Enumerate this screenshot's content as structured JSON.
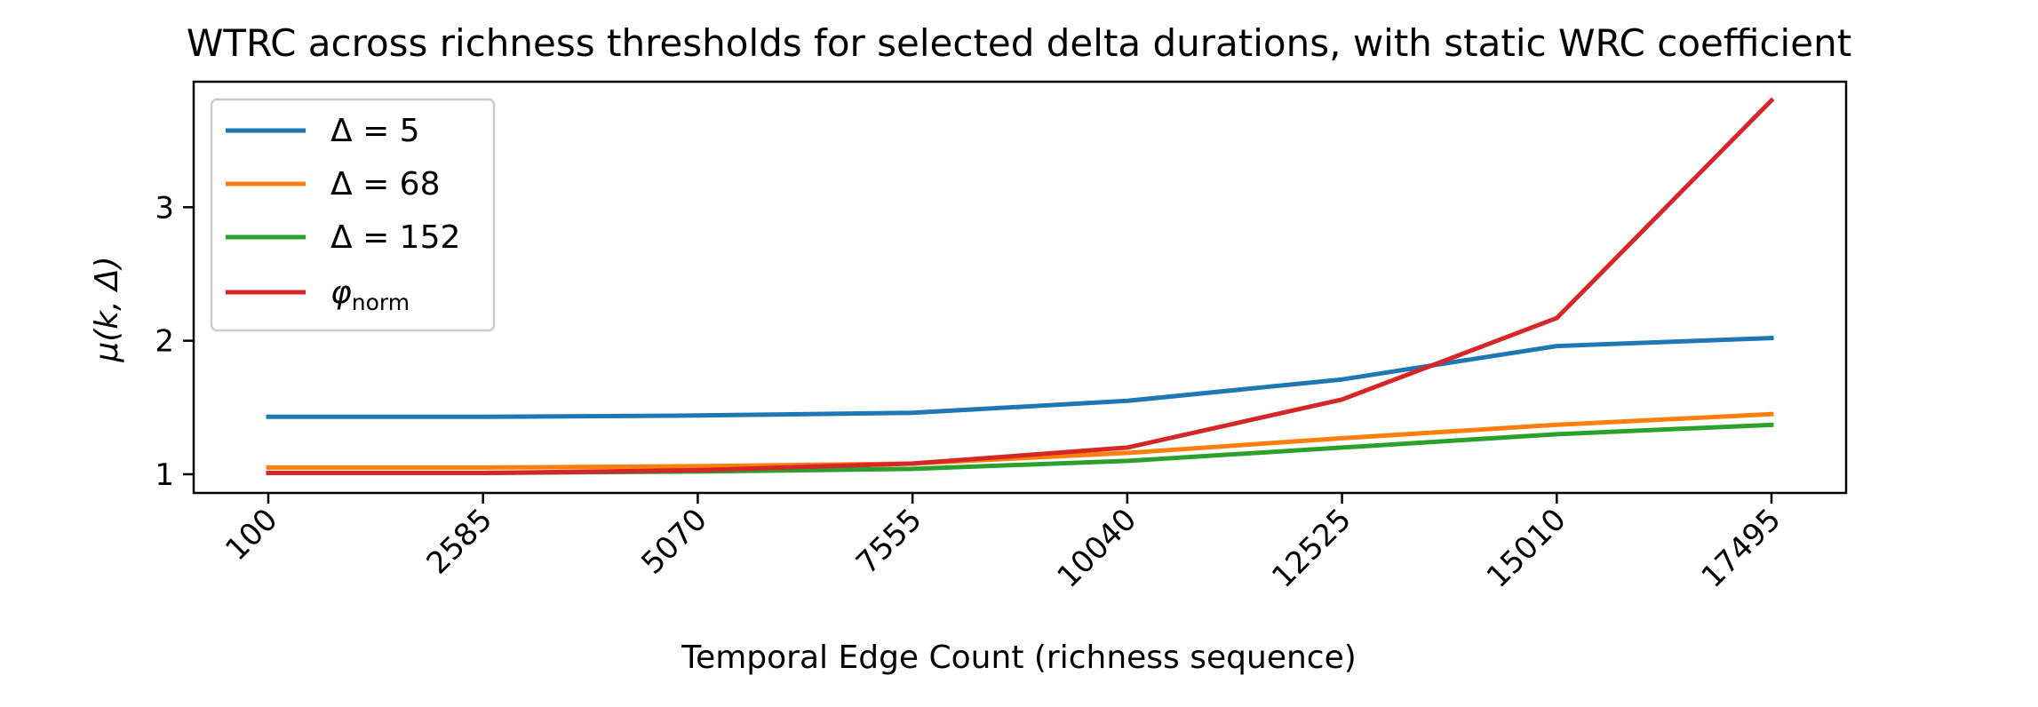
{
  "chart_data": {
    "type": "line",
    "title": "WTRC across richness thresholds for selected delta durations, with static WRC coefficient",
    "xlabel": "Temporal Edge Count (richness sequence)",
    "ylabel": "μ(k, Δ)",
    "categories": [
      "100",
      "2585",
      "5070",
      "7555",
      "10040",
      "12525",
      "15010",
      "17495"
    ],
    "ylim": [
      0.86,
      3.94
    ],
    "yticks": [
      1,
      2,
      3
    ],
    "grid": false,
    "legend_position": "top-left",
    "series": [
      {
        "name": "Δ = 5",
        "color": "#1f77b4",
        "values": [
          1.43,
          1.43,
          1.44,
          1.46,
          1.55,
          1.71,
          1.96,
          2.02
        ]
      },
      {
        "name": "Δ = 68",
        "color": "#ff7f0e",
        "values": [
          1.05,
          1.05,
          1.06,
          1.08,
          1.16,
          1.27,
          1.37,
          1.45
        ]
      },
      {
        "name": "Δ = 152",
        "color": "#2ca02c",
        "values": [
          1.01,
          1.01,
          1.02,
          1.04,
          1.1,
          1.2,
          1.3,
          1.37
        ]
      },
      {
        "name": "φ",
        "name_subscript": "norm",
        "color": "#d62728",
        "values": [
          1.01,
          1.01,
          1.03,
          1.08,
          1.2,
          1.56,
          2.17,
          3.8
        ]
      }
    ]
  }
}
